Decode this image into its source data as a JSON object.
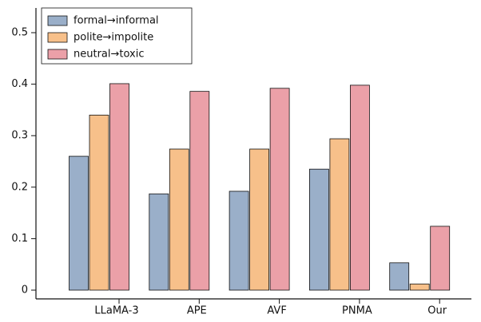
{
  "chart_data": {
    "type": "bar",
    "categories": [
      "LLaMA-3",
      "APE",
      "AVF",
      "PNMA",
      "Our"
    ],
    "series": [
      {
        "name": "formal→informal",
        "color": "#9aafc9",
        "values": [
          0.26,
          0.187,
          0.192,
          0.235,
          0.053
        ]
      },
      {
        "name": "polite→impolite",
        "color": "#f7c08a",
        "values": [
          0.34,
          0.274,
          0.274,
          0.294,
          0.012
        ]
      },
      {
        "name": "neutral→toxic",
        "color": "#eba0a8",
        "values": [
          0.401,
          0.386,
          0.392,
          0.398,
          0.124
        ]
      }
    ],
    "ylim": [
      -0.017,
      0.548
    ],
    "yticks": [
      0,
      0.1,
      0.2,
      0.3,
      0.4,
      0.5
    ],
    "legend": "upper-left"
  }
}
